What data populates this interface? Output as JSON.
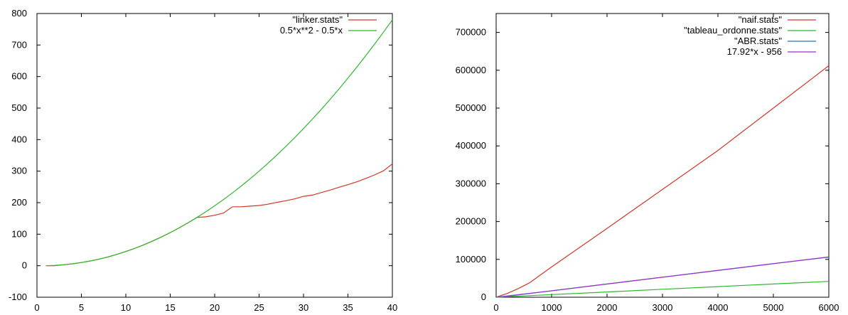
{
  "chart_data": [
    {
      "type": "line",
      "title": "",
      "xlabel": "",
      "ylabel": "",
      "xlim": [
        0,
        40
      ],
      "ylim": [
        -100,
        800
      ],
      "xticks": [
        "0",
        "5",
        "10",
        "15",
        "20",
        "25",
        "30",
        "35",
        "40"
      ],
      "yticks": [
        "-100",
        "0",
        "100",
        "200",
        "300",
        "400",
        "500",
        "600",
        "700",
        "800"
      ],
      "grid": false,
      "legend_position": "top-right",
      "series": [
        {
          "name": "\"linker.stats\"",
          "color": "#d2372a",
          "x": [
            1,
            2,
            3,
            4,
            5,
            6,
            7,
            8,
            9,
            10,
            11,
            12,
            13,
            14,
            15,
            16,
            17,
            18,
            19,
            20,
            21,
            22,
            23,
            24,
            25,
            26,
            27,
            28,
            29,
            30,
            31,
            32,
            33,
            34,
            35,
            36,
            37,
            38,
            39,
            40
          ],
          "y": [
            0,
            0,
            3,
            6,
            10,
            15,
            21,
            28,
            36,
            45,
            55,
            66,
            78,
            91,
            105,
            120,
            136,
            153,
            155,
            160,
            167,
            187,
            187,
            189,
            191,
            195,
            201,
            206,
            212,
            220,
            224,
            232,
            240,
            249,
            257,
            266,
            277,
            288,
            301,
            323
          ]
        },
        {
          "name": "0.5*x**2 - 0.5*x",
          "color": "#2db82d",
          "function": "0.5*x*x - 0.5*x",
          "x": [
            1,
            2,
            3,
            4,
            5,
            6,
            7,
            8,
            9,
            10,
            11,
            12,
            13,
            14,
            15,
            16,
            17,
            18,
            19,
            20,
            21,
            22,
            23,
            24,
            25,
            26,
            27,
            28,
            29,
            30,
            31,
            32,
            33,
            34,
            35,
            36,
            37,
            38,
            39,
            40
          ],
          "y": [
            0,
            1,
            3,
            6,
            10,
            15,
            21,
            28,
            36,
            45,
            55,
            66,
            78,
            91,
            105,
            120,
            136,
            153,
            171,
            190,
            210,
            231,
            253,
            276,
            300,
            325,
            351,
            378,
            406,
            435,
            465,
            496,
            528,
            561,
            595,
            630,
            666,
            703,
            741,
            780
          ]
        }
      ]
    },
    {
      "type": "line",
      "title": "",
      "xlabel": "",
      "ylabel": "",
      "xlim": [
        0,
        6000
      ],
      "ylim": [
        0,
        750000
      ],
      "xticks": [
        "0",
        "1000",
        "2000",
        "3000",
        "4000",
        "5000",
        "6000"
      ],
      "yticks": [
        "0",
        "100000",
        "200000",
        "300000",
        "400000",
        "500000",
        "600000",
        "700000"
      ],
      "grid": false,
      "legend_position": "top-right",
      "series": [
        {
          "name": "\"naif.stats\"",
          "color": "#d2372a",
          "x": [
            0,
            200,
            400,
            600,
            1000,
            2000,
            3000,
            4000,
            5000,
            6000
          ],
          "y": [
            0,
            10000,
            23000,
            38000,
            80000,
            182000,
            285000,
            388000,
            500000,
            612000
          ]
        },
        {
          "name": "\"tableau_ordonne.stats\"",
          "color": "#2db82d",
          "x": [
            0,
            1000,
            2000,
            3000,
            4000,
            5000,
            6000
          ],
          "y": [
            0,
            7000,
            14000,
            21000,
            28000,
            35000,
            42000
          ]
        },
        {
          "name": "\"ABR.stats\"",
          "color": "#1f77c8",
          "x": [
            0,
            1000,
            2000,
            3000,
            4000,
            5000,
            6000
          ],
          "y": [
            0,
            17000,
            35000,
            53000,
            71000,
            89000,
            106000
          ]
        },
        {
          "name": "17.92*x - 956",
          "color": "#9b30c8",
          "function": "17.92*x - 956",
          "x": [
            53.35,
            6000
          ],
          "y": [
            0,
            106564
          ]
        }
      ]
    }
  ]
}
